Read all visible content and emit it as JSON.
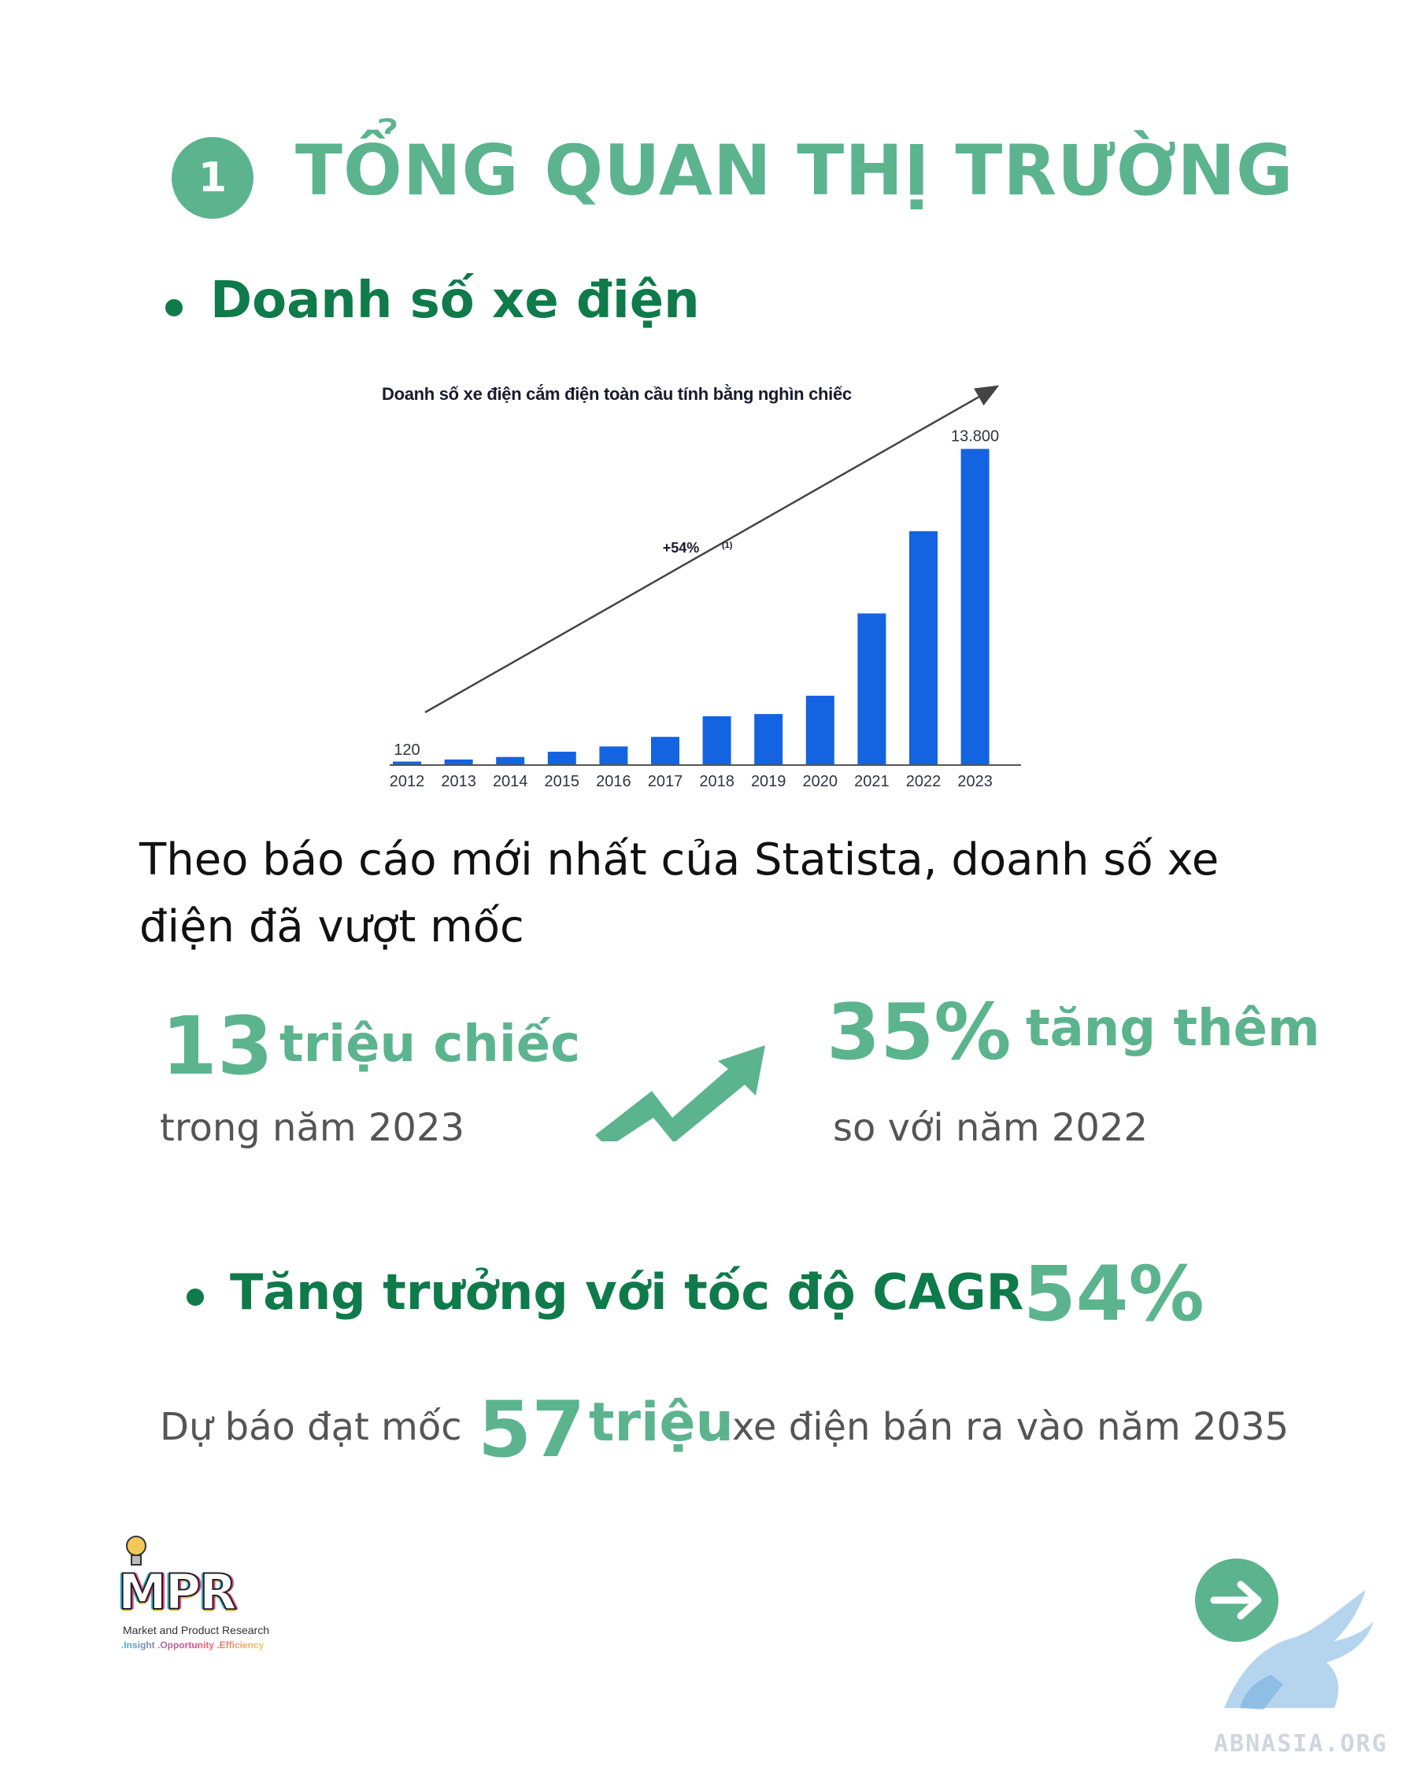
{
  "header": {
    "section_number": "1",
    "title": "TỔNG QUAN THỊ TRƯỜNG"
  },
  "section1": {
    "heading": "Doanh số xe điện"
  },
  "chart_data": {
    "type": "bar",
    "title": "Doanh số xe điện cắm điện toàn cầu tính bằng nghìn chiếc",
    "categories": [
      "2012",
      "2013",
      "2014",
      "2015",
      "2016",
      "2017",
      "2018",
      "2019",
      "2020",
      "2021",
      "2022",
      "2023"
    ],
    "values": [
      120,
      210,
      320,
      550,
      780,
      1200,
      2100,
      2200,
      3000,
      6600,
      10200,
      13800
    ],
    "data_labels": {
      "first": "120",
      "last": "13.800"
    },
    "growth_annotation": "+54%",
    "growth_footnote": "(1)",
    "ylim": [
      0,
      14500
    ],
    "bar_color": "#1463e0"
  },
  "paragraph": {
    "line1": "Theo báo cáo mới nhất của Statista, doanh số xe",
    "line2": "điện đã vượt mốc"
  },
  "stat_left": {
    "number": "13",
    "unit": "triệu chiếc",
    "caption": "trong năm 2023"
  },
  "stat_right": {
    "number": "35%",
    "unit": "tăng thêm",
    "caption": "so với năm 2022"
  },
  "section2": {
    "heading": "Tăng trưởng với tốc độ CAGR",
    "value": "54%"
  },
  "forecast": {
    "prefix": "Dự báo đạt mốc",
    "number": "57",
    "unit": "triệu",
    "suffix": "xe điện bán ra vào năm 2035"
  },
  "logo": {
    "name": "MPR",
    "subtitle": "Market and Product Research",
    "tagline": ".Insight .Opportunity .Efficiency"
  },
  "watermark": {
    "text": "ABNASIA.ORG"
  },
  "colors": {
    "accent_green": "#5cb48f",
    "dark_green": "#0f7a4a"
  },
  "icons": {
    "trend": "trend-up-arrow-icon",
    "next": "arrow-right-icon"
  }
}
